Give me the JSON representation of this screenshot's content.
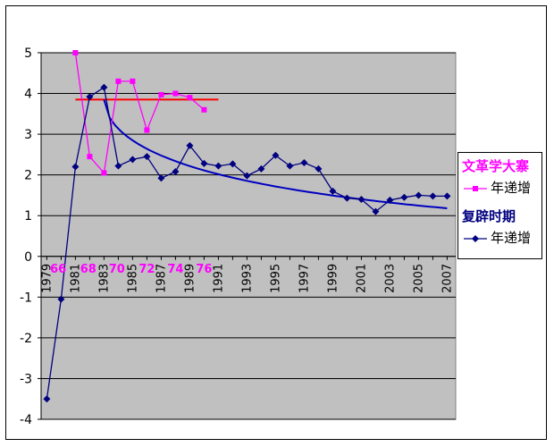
{
  "chart_data": {
    "type": "line",
    "title": "",
    "xlabel": "",
    "ylabel": "",
    "ylim": [
      -4,
      5
    ],
    "yticks": [
      "-4",
      "-3",
      "-2",
      "-1",
      "0",
      "1",
      "2",
      "3",
      "4",
      "5"
    ],
    "xticks": [
      "1979",
      "1981",
      "1983",
      "1985",
      "1987",
      "1989",
      "1991",
      "1993",
      "1995",
      "1997",
      "1999",
      "2001",
      "2003",
      "2005",
      "2007"
    ],
    "grid": true,
    "plot_background": "#c0c0c0",
    "legend": {
      "placement": "right",
      "title1": "文革学大寨",
      "title2": "复辟时期",
      "entry_label": "年递增"
    },
    "overlay_labels": [
      "66",
      "68",
      "70",
      "72",
      "74",
      "76"
    ],
    "series": [
      {
        "color": "#ff00ff",
        "marker": "square",
        "x": [
          1981,
          1982,
          1983,
          1984,
          1985,
          1986,
          1987,
          1988,
          1989,
          1990
        ],
        "values": [
          5.0,
          2.45,
          2.05,
          4.3,
          4.3,
          3.1,
          3.97,
          4.0,
          3.9,
          3.6
        ]
      },
      {
        "color": "#000080",
        "marker": "diamond",
        "x": [
          1979,
          1980,
          1981,
          1982,
          1983,
          1984,
          1985,
          1986,
          1987,
          1988,
          1989,
          1990,
          1991,
          1992,
          1993,
          1994,
          1995,
          1996,
          1997,
          1998,
          1999,
          2000,
          2001,
          2002,
          2003,
          2004,
          2005,
          2006,
          2007
        ],
        "values": [
          -3.5,
          -1.05,
          2.2,
          3.92,
          4.15,
          2.22,
          2.38,
          2.45,
          1.92,
          2.08,
          2.72,
          2.28,
          2.22,
          2.27,
          1.98,
          2.15,
          2.48,
          2.22,
          2.3,
          2.15,
          1.6,
          1.43,
          1.4,
          1.1,
          1.38,
          1.45,
          1.5,
          1.48,
          1.48
        ]
      }
    ],
    "trend_lines": [
      {
        "color": "#ff0000",
        "x": [
          1981,
          1991
        ],
        "values": [
          3.85,
          3.85
        ]
      },
      {
        "color": "#0000c0",
        "x": [
          1983,
          2007
        ],
        "values": [
          3.85,
          1.18
        ],
        "curve": "decay"
      }
    ],
    "colors": {
      "magenta": "#ff00ff",
      "navy": "#000080",
      "red": "#ff0000",
      "blue": "#0000c0"
    }
  }
}
